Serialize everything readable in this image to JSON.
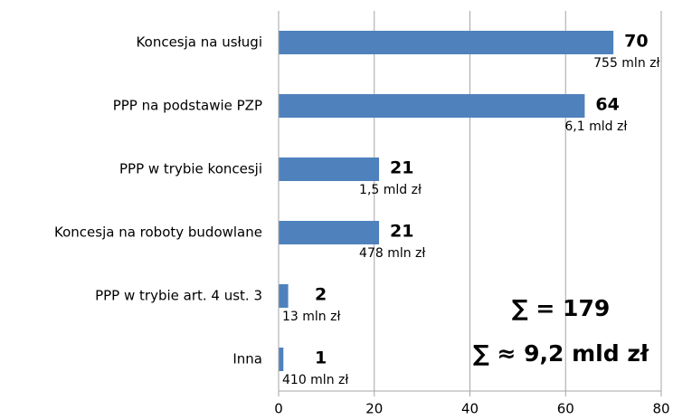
{
  "chart_data": {
    "type": "bar",
    "orientation": "horizontal",
    "categories": [
      "Koncesja na usługi",
      "PPP na podstawie PZP",
      "PPP w trybie koncesji",
      "Koncesja na roboty budowlane",
      "PPP w trybie art. 4 ust. 3",
      "Inna"
    ],
    "values": [
      70,
      64,
      21,
      21,
      2,
      1
    ],
    "amounts": [
      "755 mln zł",
      "6,1 mld zł",
      "1,5 mld zł",
      "478 mln zł",
      "13 mln zł",
      "410 mln zł"
    ],
    "color": "#4f81bd",
    "xlim": [
      0,
      80
    ],
    "xticks": [
      0,
      20,
      40,
      60,
      80
    ],
    "grid": true,
    "annotations": [
      "∑ = 179",
      "∑ ≈ 9,2 mld zł"
    ]
  }
}
